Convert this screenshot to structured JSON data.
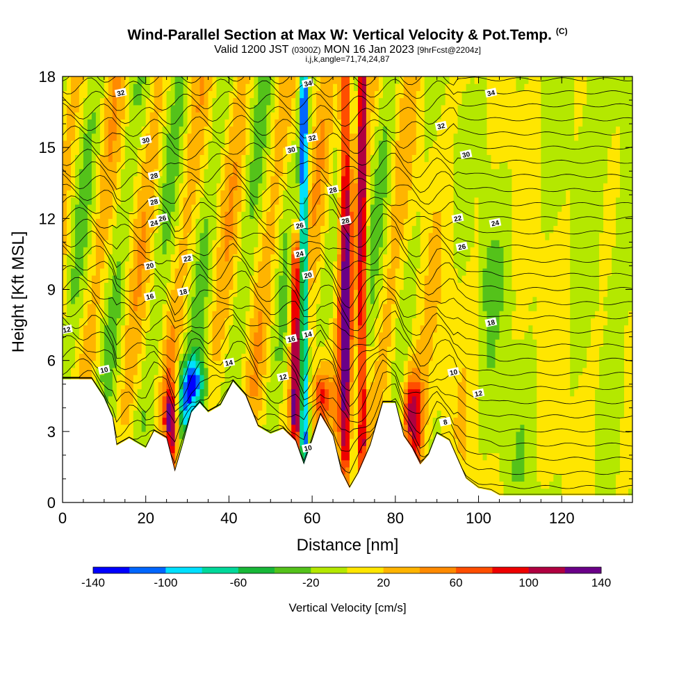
{
  "header": {
    "title": "Wind-Parallel Section at Max W: Vertical Velocity & Pot.Temp.",
    "copyright_mark": "(C)",
    "valid_prefix": "Valid 1200 JST",
    "valid_utc": "(0300Z)",
    "valid_date": "MON 16 Jan 2023",
    "forecast_info": "[9hrFcst@2204z]",
    "grid_info": "i,j,k,angle=71,74,24,87"
  },
  "chart_data": {
    "type": "heatmap",
    "xlabel": "Distance [nm]",
    "ylabel": "Height [Kft MSL]",
    "xlim": [
      0,
      137
    ],
    "ylim": [
      0,
      18
    ],
    "x_ticks": [
      0,
      20,
      40,
      60,
      80,
      100,
      120
    ],
    "y_ticks": [
      0,
      3,
      6,
      9,
      12,
      15,
      18
    ],
    "colorbar": {
      "title": "Vertical Velocity [cm/s]",
      "bounds": [
        -140,
        -120,
        -100,
        -80,
        -60,
        -40,
        -20,
        0,
        20,
        40,
        60,
        80,
        100,
        120,
        140
      ],
      "tick_labels": [
        "-140",
        "-100",
        "-60",
        "-20",
        "20",
        "60",
        "100",
        "140"
      ],
      "colors": [
        "#0000ff",
        "#0066ff",
        "#00e0ff",
        "#00d89a",
        "#18b838",
        "#54c21a",
        "#b4e800",
        "#ffe600",
        "#ffb400",
        "#ff8a00",
        "#ff4e00",
        "#ee0000",
        "#b00040",
        "#6a0088"
      ]
    },
    "terrain_kft": [
      [
        0,
        5.2
      ],
      [
        7,
        5.2
      ],
      [
        10,
        4.4
      ],
      [
        12,
        3.6
      ],
      [
        13,
        2.4
      ],
      [
        16,
        2.7
      ],
      [
        20,
        2.3
      ],
      [
        22,
        3.0
      ],
      [
        25,
        2.7
      ],
      [
        27,
        1.3
      ],
      [
        29,
        2.5
      ],
      [
        31,
        3.8
      ],
      [
        33,
        4.2
      ],
      [
        35,
        3.8
      ],
      [
        38,
        4.1
      ],
      [
        41,
        5.1
      ],
      [
        44,
        4.5
      ],
      [
        47,
        3.2
      ],
      [
        50,
        2.9
      ],
      [
        53,
        3.1
      ],
      [
        56,
        2.6
      ],
      [
        58,
        1.6
      ],
      [
        60,
        2.6
      ],
      [
        62,
        3.7
      ],
      [
        65,
        2.8
      ],
      [
        67,
        1.3
      ],
      [
        69,
        0.6
      ],
      [
        71,
        1.2
      ],
      [
        74,
        2.4
      ],
      [
        77,
        4.2
      ],
      [
        80,
        4.2
      ],
      [
        82,
        2.8
      ],
      [
        84,
        2.3
      ],
      [
        86,
        1.6
      ],
      [
        88,
        2.0
      ],
      [
        90,
        2.9
      ],
      [
        93,
        2.6
      ],
      [
        97,
        1.0
      ],
      [
        100,
        0.6
      ],
      [
        103,
        0.5
      ],
      [
        105,
        0.3
      ],
      [
        110,
        0.3
      ],
      [
        137,
        0.3
      ]
    ],
    "updraft_bands_nm": [
      {
        "x": 26,
        "w": 1.5,
        "kind": "up",
        "top_kft": 4.0
      },
      {
        "x": 56,
        "w": 1.2,
        "kind": "up",
        "top_kft": 10.5
      },
      {
        "x": 58,
        "w": 0.9,
        "kind": "down",
        "top_kft": 17.5
      },
      {
        "x": 62,
        "w": 2.2,
        "kind": "up",
        "top_kft": 4.8
      },
      {
        "x": 68,
        "w": 1.4,
        "kind": "up",
        "top_kft": 18
      },
      {
        "x": 72,
        "w": 1.0,
        "kind": "up",
        "top_kft": 18
      },
      {
        "x": 31,
        "w": 3.5,
        "kind": "down",
        "top_kft": 6.0
      },
      {
        "x": 84,
        "w": 2.5,
        "kind": "up",
        "top_kft": 4.5
      }
    ],
    "isentrope_labels": [
      "32",
      "34",
      "30",
      "32",
      "34",
      "28",
      "30",
      "28",
      "32",
      "26",
      "28",
      "30",
      "24",
      "26",
      "28",
      "22",
      "24",
      "26",
      "20",
      "22",
      "24",
      "18",
      "20",
      "16",
      "18",
      "12",
      "14",
      "16",
      "10",
      "12",
      "14",
      "10",
      "12",
      "8",
      "10"
    ]
  }
}
